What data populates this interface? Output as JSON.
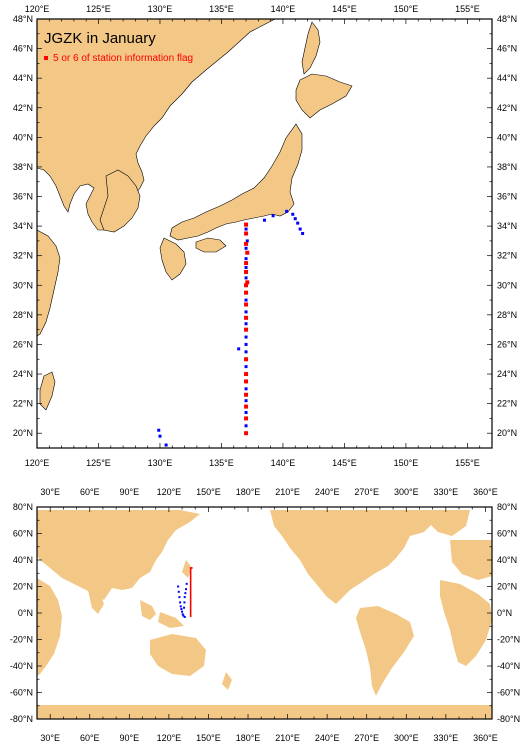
{
  "map_top": {
    "title": "JGZK in January",
    "legend": "5 or 6 of station information flag",
    "lon_labels": [
      "120°E",
      "125°E",
      "130°E",
      "135°E",
      "140°E",
      "145°E",
      "150°E",
      "155°E"
    ],
    "lat_labels": [
      "20°N",
      "22°N",
      "24°N",
      "26°N",
      "28°N",
      "30°N",
      "32°N",
      "34°N",
      "36°N",
      "38°N",
      "40°N",
      "42°N",
      "44°N",
      "46°N",
      "48°N"
    ],
    "lon_range": [
      120,
      157
    ],
    "lat_range": [
      19,
      48
    ],
    "flagged_points": [
      [
        137,
        34.1
      ],
      [
        137,
        33.5
      ],
      [
        137,
        32.8
      ],
      [
        137.1,
        32.2
      ],
      [
        137,
        31.5
      ],
      [
        137,
        30.9
      ],
      [
        137.1,
        30.2
      ],
      [
        137,
        30.0
      ],
      [
        137,
        29.5
      ],
      [
        137,
        28.7
      ],
      [
        137,
        27.8
      ],
      [
        137,
        27.0
      ],
      [
        137,
        25.0
      ],
      [
        137,
        24.0
      ],
      [
        137,
        23.5
      ],
      [
        137,
        22.6
      ],
      [
        137,
        21.8
      ],
      [
        137,
        21.0
      ],
      [
        137,
        20.0
      ]
    ],
    "normal_points": [
      [
        137,
        33.8
      ],
      [
        137.1,
        33.0
      ],
      [
        137,
        32.5
      ],
      [
        137,
        31.8
      ],
      [
        137,
        31.2
      ],
      [
        137,
        30.5
      ],
      [
        137,
        29.0
      ],
      [
        137,
        28.2
      ],
      [
        137,
        27.4
      ],
      [
        137,
        26.5
      ],
      [
        137,
        26.0
      ],
      [
        137,
        25.5
      ],
      [
        137,
        24.5
      ],
      [
        137,
        23.0
      ],
      [
        137,
        22.2
      ],
      [
        137,
        21.4
      ],
      [
        137,
        20.5
      ],
      [
        136.4,
        25.7
      ],
      [
        138.5,
        34.4
      ],
      [
        139.2,
        34.7
      ],
      [
        140.3,
        35.0
      ],
      [
        140.8,
        34.8
      ],
      [
        141.0,
        34.5
      ],
      [
        141.2,
        34.2
      ],
      [
        141.4,
        33.8
      ],
      [
        141.6,
        33.5
      ],
      [
        129.9,
        20.2
      ],
      [
        130.0,
        19.8
      ],
      [
        130.5,
        19.2
      ]
    ],
    "colors": {
      "land": "#f3c886",
      "flag": "#ff0000",
      "normal": "#0000ff",
      "title": "#000000",
      "legend": "#ff0000"
    }
  },
  "map_bottom": {
    "lon_labels": [
      "30°E",
      "60°E",
      "90°E",
      "120°E",
      "150°E",
      "180°E",
      "210°E",
      "240°E",
      "270°E",
      "300°E",
      "330°E",
      "360°E"
    ],
    "lat_labels": [
      "80°N",
      "60°N",
      "40°N",
      "20°N",
      "0°N",
      "-20°N",
      "-40°N",
      "-60°N",
      "-80°N"
    ],
    "lon_range": [
      20,
      365
    ],
    "lat_range": [
      -80,
      80
    ],
    "red_track": [
      [
        136.5,
        -3
      ],
      [
        136.5,
        34
      ],
      [
        138,
        34
      ]
    ],
    "blue_points": [
      [
        127,
        20
      ],
      [
        127.5,
        16
      ],
      [
        128,
        12
      ],
      [
        128.5,
        8
      ],
      [
        129,
        5
      ],
      [
        129.5,
        3
      ],
      [
        130,
        1
      ],
      [
        130.5,
        -1
      ],
      [
        131,
        -2
      ],
      [
        132,
        -3
      ],
      [
        131.5,
        4
      ],
      [
        131.8,
        8
      ],
      [
        132,
        12
      ],
      [
        132.5,
        15
      ],
      [
        133,
        18
      ],
      [
        133.5,
        22
      ]
    ]
  }
}
